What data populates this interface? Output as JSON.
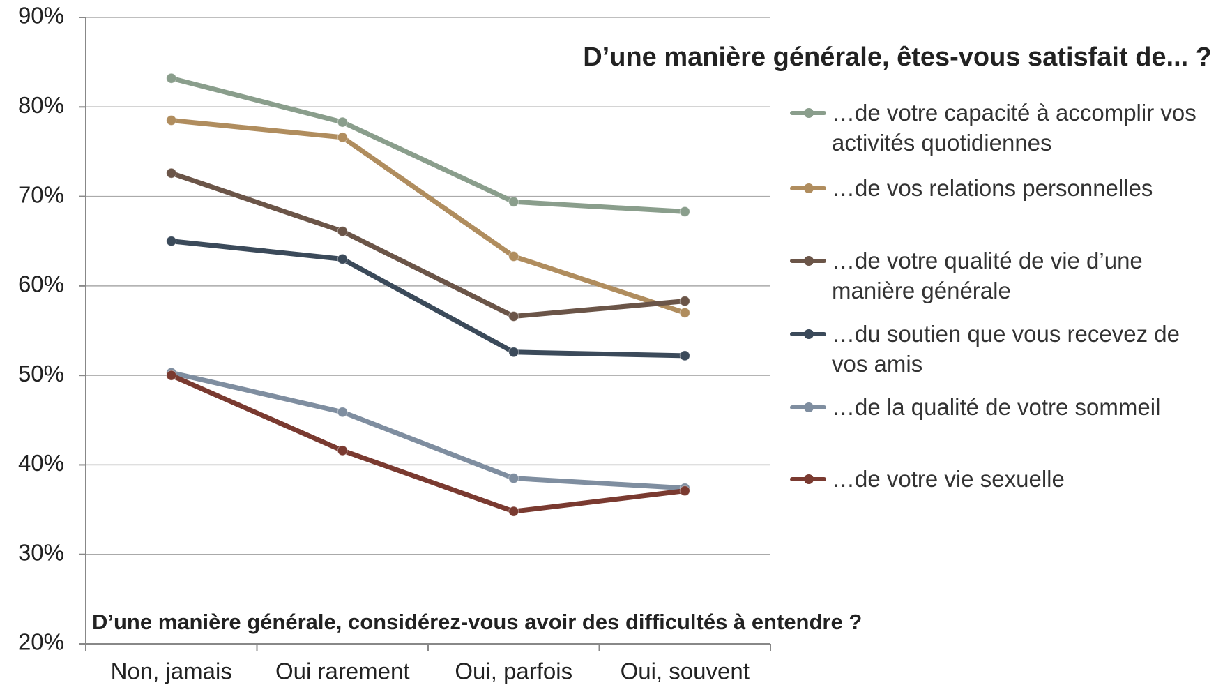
{
  "chart_data": {
    "type": "line",
    "title": "D’une manière générale, êtes-vous satisfait de... ?",
    "x_label": "D’une manière générale, considérez-vous avoir des difficultés à entendre ?",
    "categories": [
      "Non, jamais",
      "Oui  rarement",
      "Oui, parfois",
      "Oui, souvent"
    ],
    "series": [
      {
        "name": "…de votre capacité à accomplir vos activités quotidiennes",
        "color": "#8a9e8c",
        "values": [
          83.2,
          78.3,
          69.4,
          68.3
        ]
      },
      {
        "name": "…de vos relations personnelles",
        "color": "#b08d5e",
        "values": [
          78.5,
          76.6,
          63.3,
          57.0
        ]
      },
      {
        "name": "…de votre qualité de vie d’une manière générale",
        "color": "#6b5548",
        "values": [
          72.6,
          66.1,
          56.6,
          58.3
        ]
      },
      {
        "name": "…du soutien que vous recevez de vos amis",
        "color": "#3b4a5a",
        "values": [
          65.0,
          63.0,
          52.6,
          52.2
        ]
      },
      {
        "name": "…de la qualité de votre sommeil",
        "color": "#7f8ea0",
        "values": [
          50.3,
          45.9,
          38.5,
          37.4
        ]
      },
      {
        "name": "…de votre vie sexuelle",
        "color": "#7a3a30",
        "values": [
          50.0,
          41.6,
          34.8,
          37.1
        ]
      }
    ],
    "ylim": [
      20,
      90
    ],
    "yticks": [
      {
        "value": 20,
        "label": "20%"
      },
      {
        "value": 30,
        "label": "30%"
      },
      {
        "value": 40,
        "label": "40%"
      },
      {
        "value": 50,
        "label": "50%"
      },
      {
        "value": 60,
        "label": "60%"
      },
      {
        "value": 70,
        "label": "70%"
      },
      {
        "value": 80,
        "label": "80%"
      },
      {
        "value": 90,
        "label": "90%"
      }
    ],
    "grid": true
  }
}
